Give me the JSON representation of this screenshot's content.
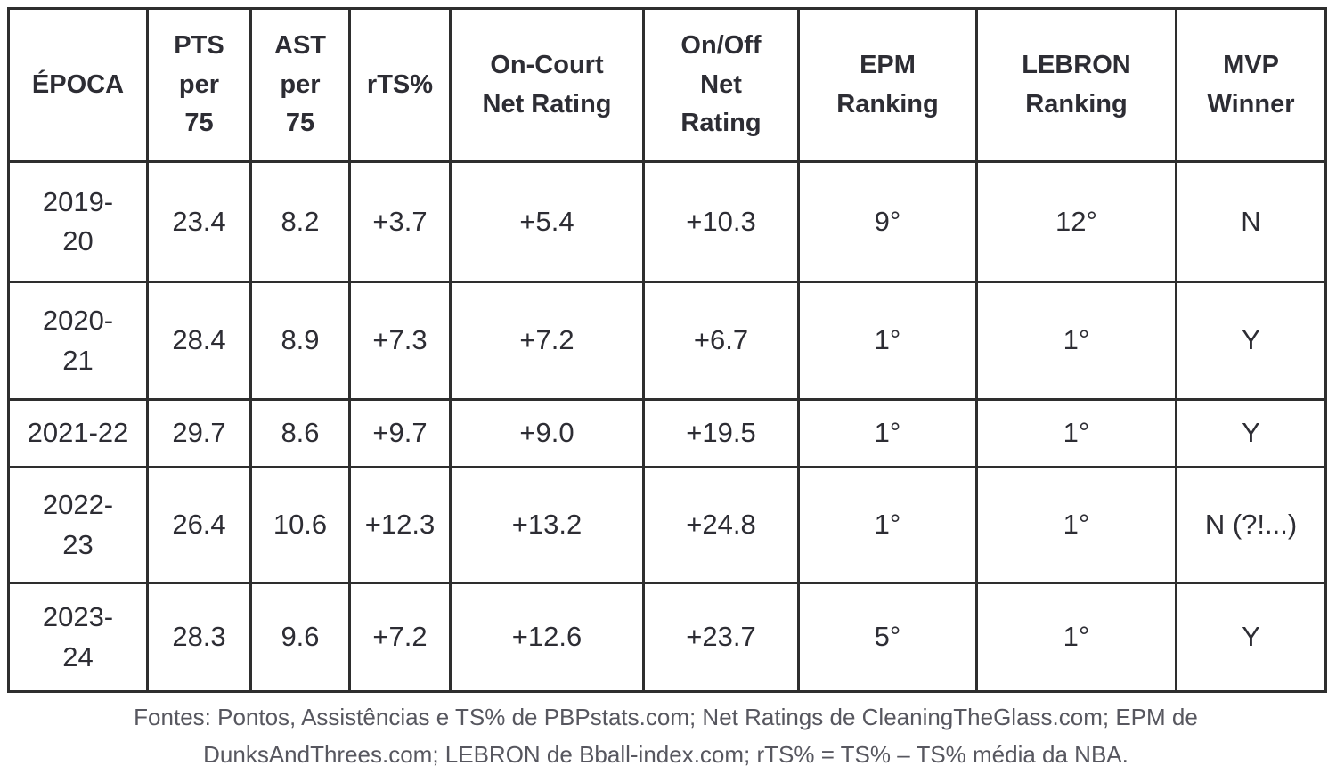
{
  "chart_data": {
    "type": "table",
    "columns": [
      {
        "key": "epoca",
        "label": "ÉPOCA"
      },
      {
        "key": "pts-per-75",
        "label": "PTS\nper\n75"
      },
      {
        "key": "ast-per-75",
        "label": "AST\nper\n75"
      },
      {
        "key": "rts-pct",
        "label": "rTS%"
      },
      {
        "key": "on-court-net-rating",
        "label": "On-Court\nNet Rating"
      },
      {
        "key": "on-off-net-rating",
        "label": "On/Off\nNet\nRating"
      },
      {
        "key": "epm-ranking",
        "label": "EPM\nRanking"
      },
      {
        "key": "lebron-ranking",
        "label": "LEBRON\nRanking"
      },
      {
        "key": "mvp-winner",
        "label": "MVP\nWinner"
      }
    ],
    "rows": [
      {
        "season": "2019-\n20",
        "values": [
          "23.4",
          "8.2",
          "+3.7",
          "+5.4",
          "+10.3",
          "9°",
          "12°",
          "N"
        ]
      },
      {
        "season": "2020-\n21",
        "values": [
          "28.4",
          "8.9",
          "+7.3",
          "+7.2",
          "+6.7",
          "1°",
          "1°",
          "Y"
        ]
      },
      {
        "season": "2021-22",
        "values": [
          "29.7",
          "8.6",
          "+9.7",
          "+9.0",
          "+19.5",
          "1°",
          "1°",
          "Y"
        ]
      },
      {
        "season": "2022-\n23",
        "values": [
          "26.4",
          "10.6",
          "+12.3",
          "+13.2",
          "+24.8",
          "1°",
          "1°",
          "N (?!...)"
        ]
      },
      {
        "season": "2023-\n24",
        "values": [
          "28.3",
          "9.6",
          "+7.2",
          "+12.6",
          "+23.7",
          "5°",
          "1°",
          "Y"
        ]
      }
    ],
    "caption_lines": [
      "Fontes: Pontos, Assistências e TS% de PBPstats.com; Net Ratings de CleaningTheGlass.com; EPM de",
      "DunksAndThrees.com; LEBRON de Bball-index.com; rTS% = TS% – TS% média da NBA."
    ]
  },
  "colors": {
    "table_text": "#2d2d34",
    "border": "#2e2e2e",
    "footer_text": "#57575f",
    "background": "#ffffff"
  }
}
